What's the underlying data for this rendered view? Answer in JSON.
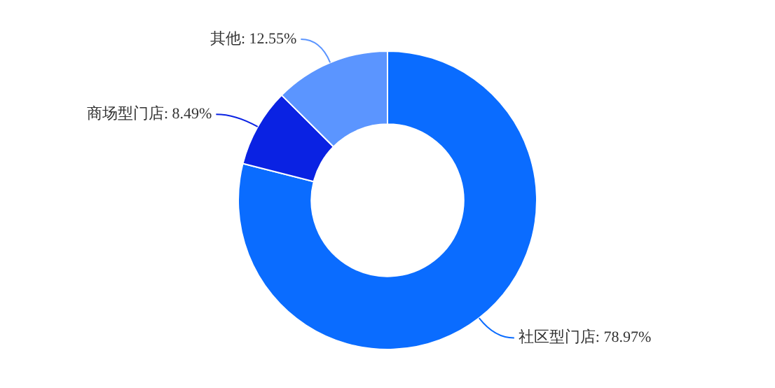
{
  "chart_data": {
    "type": "donut",
    "categories": [
      "社区型门店",
      "商场型门店",
      "其他"
    ],
    "values": [
      78.97,
      8.49,
      12.55
    ],
    "value_labels": [
      "78.97%",
      "8.49%",
      "12.55%"
    ],
    "colors": [
      "#0a6cff",
      "#0a22e3",
      "#5b95ff"
    ],
    "legend": false
  }
}
